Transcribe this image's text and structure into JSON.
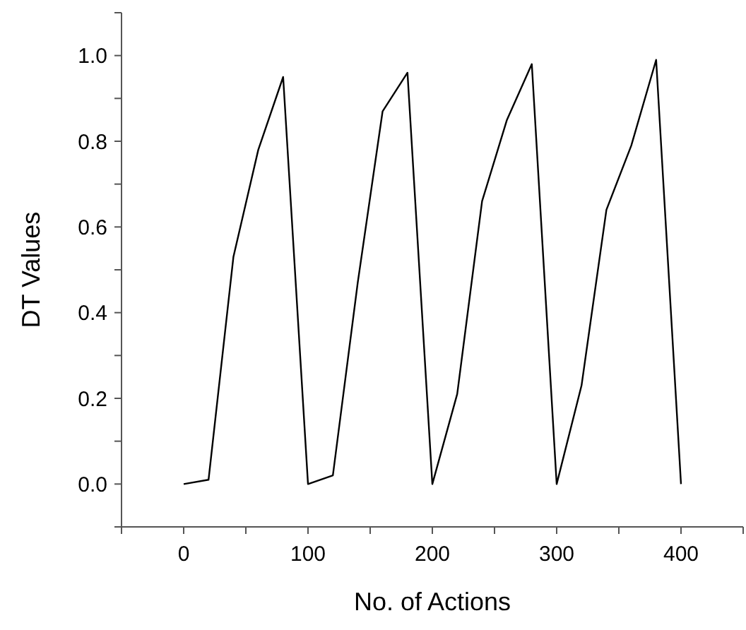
{
  "chart_data": {
    "type": "line",
    "xlabel": "No. of Actions",
    "ylabel": "DT Values",
    "x": [
      0,
      20,
      40,
      60,
      80,
      100,
      120,
      140,
      160,
      180,
      200,
      220,
      240,
      260,
      280,
      300,
      320,
      340,
      360,
      380,
      400
    ],
    "series": [
      {
        "color": "#000000",
        "values": [
          0,
          0.01,
          0.53,
          0.78,
          0.95,
          0,
          0.02,
          0.47,
          0.87,
          0.96,
          0,
          0.21,
          0.66,
          0.85,
          0.98,
          0,
          0.23,
          0.64,
          0.79,
          0.99,
          0
        ]
      }
    ],
    "xlim": [
      -50,
      450
    ],
    "xticks": [
      {
        "value": -50,
        "label": null
      },
      0,
      {
        "value": 50,
        "label": null
      },
      100,
      {
        "value": 150,
        "label": null
      },
      200,
      {
        "value": 250,
        "label": null
      },
      300,
      {
        "value": 350,
        "label": null
      },
      400,
      {
        "value": 450,
        "label": null
      }
    ],
    "ylim": [
      -0.1,
      1.1
    ],
    "yticks": [
      {
        "value": -0.1,
        "label": null
      },
      {
        "value": 0,
        "label": "0.0"
      },
      {
        "value": 0.1,
        "label": null
      },
      0.2,
      {
        "value": 0.3,
        "label": null
      },
      0.4,
      {
        "value": 0.5,
        "label": null
      },
      0.6,
      {
        "value": 0.7,
        "label": null
      },
      0.8,
      {
        "value": 0.9,
        "label": null
      },
      {
        "value": 1,
        "label": "1.0"
      },
      {
        "value": 1.1,
        "label": null
      }
    ],
    "grid": false,
    "marker": "none",
    "line_style": "solid"
  }
}
